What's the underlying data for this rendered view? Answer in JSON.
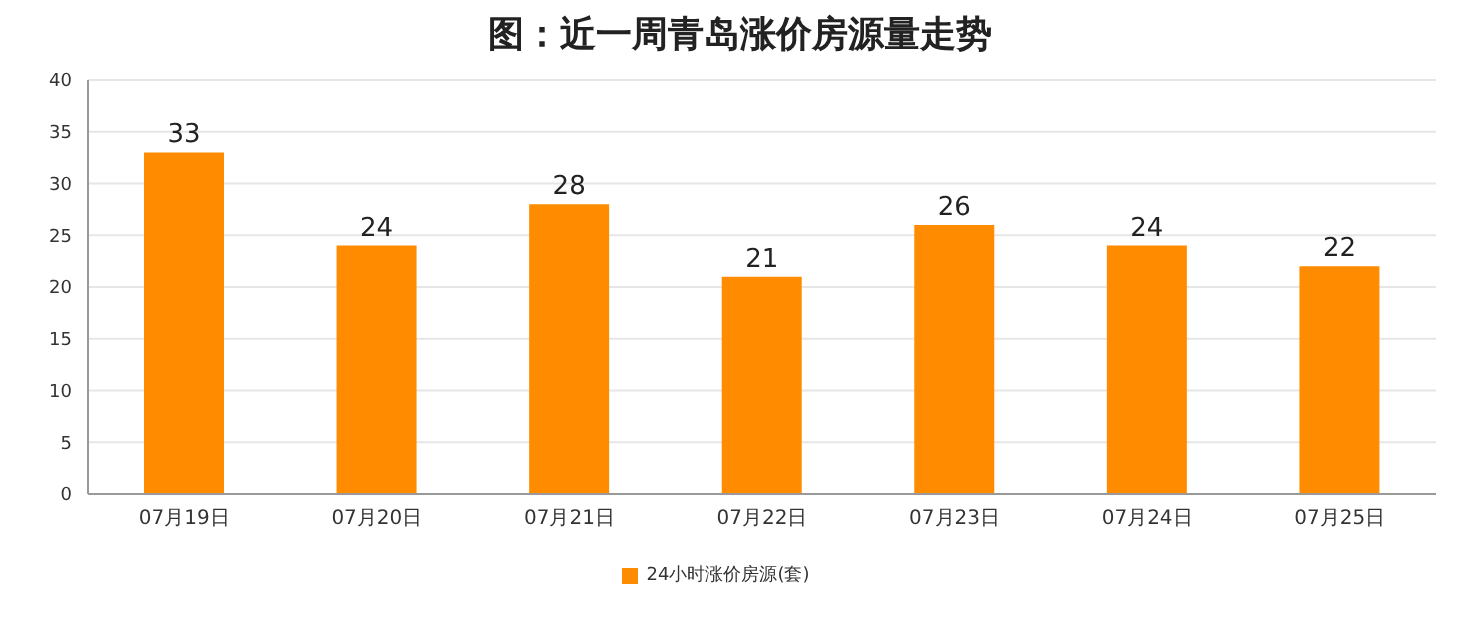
{
  "chart_data": {
    "type": "bar",
    "title": "图：近一周青岛涨价房源量走势",
    "categories": [
      "07月19日",
      "07月20日",
      "07月21日",
      "07月22日",
      "07月23日",
      "07月24日",
      "07月25日"
    ],
    "series": [
      {
        "name": "24小时涨价房源(套)",
        "color": "#ff8c00",
        "values": [
          33,
          24,
          28,
          21,
          26,
          24,
          22
        ]
      }
    ],
    "ylim": [
      0,
      40
    ],
    "yticks": [
      0,
      5,
      10,
      15,
      20,
      25,
      30,
      35,
      40
    ],
    "grid": "y",
    "legend": "bottom",
    "data_labels": true
  }
}
